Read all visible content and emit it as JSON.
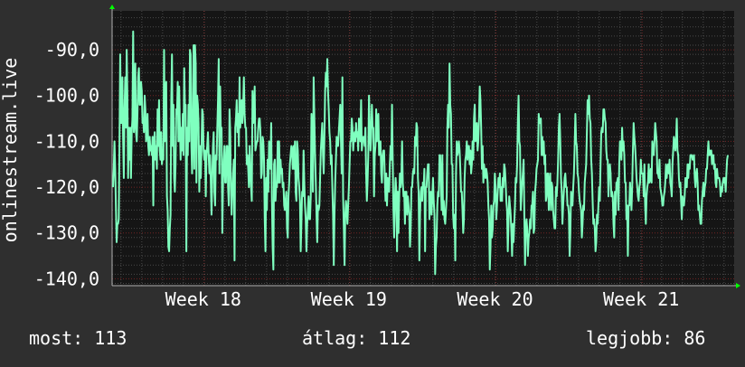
{
  "colors": {
    "background": "#2f2f2f",
    "plot_background": "#151515",
    "grid": "#4a4a4a",
    "grid_minor": "#c03030",
    "series": "#7fffbf",
    "arrow": "#00ff00"
  },
  "chart_data": {
    "type": "line",
    "ylabel": "onlinestream.live",
    "ylim": [
      -141.5,
      -81.5
    ],
    "yticks": [
      -90,
      -100,
      -110,
      -120,
      -130,
      -140
    ],
    "ytick_labels": [
      "-90,0",
      "-100,0",
      "-110,0",
      "-120,0",
      "-130,0",
      "-140,0"
    ],
    "xlim": [
      0,
      1
    ],
    "xticks": [
      0.148,
      0.382,
      0.617,
      0.852
    ],
    "xtick_labels": [
      "Week 18",
      "Week 19",
      "Week 20",
      "Week 21"
    ],
    "grid": true,
    "series": [
      {
        "values": [
          -120,
          -116,
          -110,
          -116,
          -124,
          -132,
          -128,
          -128,
          -127,
          -110,
          -91,
          -106,
          -106,
          -96,
          -109,
          -118,
          -103,
          -96,
          -107,
          -90,
          -100,
          -118,
          -107,
          -114,
          -107,
          -118,
          -108,
          -105,
          -86,
          -108,
          -106,
          -93,
          -108,
          -110,
          -104,
          -96,
          -94,
          -102,
          -102,
          -97,
          -99,
          -106,
          -105,
          -108,
          -100,
          -103,
          -110,
          -108,
          -104,
          -111,
          -113,
          -109,
          -112,
          -111,
          -113,
          -109,
          -124,
          -110,
          -108,
          -114,
          -111,
          -116,
          -103,
          -111,
          -101,
          -112,
          -114,
          -108,
          -115,
          -113,
          -114,
          -90,
          -110,
          -102,
          -97,
          -122,
          -125,
          -133,
          -134,
          -129,
          -126,
          -101,
          -91,
          -111,
          -102,
          -118,
          -121,
          -115,
          -103,
          -104,
          -97,
          -110,
          -98,
          -106,
          -114,
          -107,
          -112,
          -104,
          -113,
          -94,
          -102,
          -102,
          -134,
          -107,
          -113,
          -102,
          -110,
          -90,
          -91,
          -111,
          -117,
          -105,
          -89,
          -116,
          -89,
          -93,
          -119,
          -100,
          -102,
          -106,
          -121,
          -111,
          -118,
          -112,
          -103,
          -104,
          -112,
          -114,
          -112,
          -122,
          -113,
          -111,
          -108,
          -113,
          -117,
          -113,
          -119,
          -126,
          -118,
          -111,
          -108,
          -121,
          -124,
          -113,
          -114,
          -107,
          -101,
          -92,
          -117,
          -98,
          -109,
          -107,
          -130,
          -119,
          -114,
          -111,
          -119,
          -119,
          -111,
          -111,
          -120,
          -124,
          -103,
          -108,
          -120,
          -126,
          -121,
          -117,
          -114,
          -136,
          -107,
          -105,
          -101,
          -108,
          -104,
          -111,
          -96,
          -107,
          -104,
          -101,
          -106,
          -102,
          -96,
          -104,
          -107,
          -107,
          -115,
          -113,
          -116,
          -120,
          -111,
          -116,
          -120,
          -123,
          -99,
          -106,
          -104,
          -98,
          -112,
          -111,
          -110,
          -110,
          -107,
          -105,
          -105,
          -108,
          -118,
          -117,
          -109,
          -110,
          -114,
          -127,
          -134,
          -118,
          -125,
          -114,
          -121,
          -110,
          -112,
          -116,
          -106,
          -123,
          -133,
          -138,
          -115,
          -114,
          -123,
          -119,
          -120,
          -110,
          -119,
          -110,
          -119,
          -114,
          -117,
          -116,
          -120,
          -119,
          -124,
          -125,
          -123,
          -121,
          -129,
          -131,
          -122,
          -119,
          -115,
          -113,
          -111,
          -112,
          -116,
          -111,
          -116,
          -110,
          -121,
          -123,
          -110,
          -112,
          -118,
          -120,
          -123,
          -134,
          -128,
          -121,
          -122,
          -112,
          -119,
          -124,
          -127,
          -134,
          -128,
          -125,
          -122,
          -127,
          -127,
          -122,
          -104,
          -110,
          -121,
          -96,
          -105,
          -113,
          -119,
          -126,
          -132,
          -124,
          -125,
          -124,
          -118,
          -112,
          -109,
          -106,
          -113,
          -117,
          -109,
          -99,
          -95,
          -98,
          -92,
          -99,
          -103,
          -108,
          -110,
          -115,
          -113,
          -120,
          -126,
          -137,
          -126,
          -119,
          -114,
          -109,
          -111,
          -111,
          -108,
          -105,
          -102,
          -110,
          -117,
          -96,
          -122,
          -129,
          -137,
          -126,
          -123,
          -125,
          -128,
          -124,
          -120,
          -115,
          -110,
          -110,
          -105,
          -107,
          -112,
          -109,
          -108,
          -110,
          -106,
          -109,
          -108,
          -112,
          -105,
          -106,
          -110,
          -101,
          -112,
          -110,
          -109,
          -109,
          -111,
          -107,
          -117,
          -123,
          -119,
          -113,
          -100,
          -106,
          -112,
          -109,
          -102,
          -107,
          -107,
          -122,
          -113,
          -111,
          -103,
          -110,
          -105,
          -104,
          -113,
          -111,
          -110,
          -117,
          -119,
          -113,
          -112,
          -112,
          -118,
          -123,
          -117,
          -124,
          -118,
          -119,
          -121,
          -115,
          -111,
          -114,
          -102,
          -114,
          -125,
          -131,
          -123,
          -118,
          -121,
          -134,
          -121,
          -130,
          -122,
          -117,
          -120,
          -118,
          -110,
          -119,
          -122,
          -121,
          -128,
          -121,
          -121,
          -126,
          -122,
          -124,
          -126,
          -133,
          -129,
          -120,
          -120,
          -117,
          -116,
          -117,
          -109,
          -111,
          -106,
          -107,
          -118,
          -121,
          -136,
          -126,
          -121,
          -120,
          -123,
          -119,
          -120,
          -116,
          -134,
          -120,
          -120,
          -117,
          -115,
          -115,
          -127,
          -123,
          -121,
          -126,
          -122,
          -118,
          -123,
          -126,
          -139,
          -133,
          -131,
          -124,
          -121,
          -122,
          -113,
          -113,
          -119,
          -125,
          -113,
          -126,
          -123,
          -127,
          -128,
          -125,
          -122,
          -107,
          -102,
          -107,
          -93,
          -102,
          -104,
          -115,
          -115,
          -126,
          -129,
          -126,
          -136,
          -117,
          -110,
          -113,
          -112,
          -110,
          -112,
          -116,
          -121,
          -121,
          -125,
          -130,
          -127,
          -118,
          -114,
          -113,
          -110,
          -114,
          -111,
          -111,
          -115,
          -112,
          -117,
          -115,
          -110,
          -114,
          -105,
          -102,
          -110,
          -109,
          -106,
          -112,
          -110,
          -105,
          -98,
          -101,
          -107,
          -116,
          -111,
          -119,
          -115,
          -117,
          -118,
          -116,
          -117,
          -119,
          -124,
          -127,
          -138,
          -133,
          -124,
          -131,
          -129,
          -124,
          -123,
          -117,
          -120,
          -127,
          -124,
          -121,
          -118,
          -120,
          -117,
          -123,
          -120,
          -123,
          -118,
          -120,
          -115,
          -116,
          -119,
          -123,
          -125,
          -134,
          -128,
          -122,
          -124,
          -126,
          -130,
          -135,
          -128,
          -132,
          -128,
          -124,
          -118,
          -119,
          -115,
          -106,
          -100,
          -110,
          -111,
          -125,
          -122,
          -119,
          -117,
          -114,
          -126,
          -137,
          -129,
          -127,
          -129,
          -135,
          -131,
          -130,
          -127,
          -129,
          -124,
          -124,
          -121,
          -130,
          -129,
          -121,
          -119,
          -116,
          -115,
          -114,
          -104,
          -106,
          -106,
          -105,
          -113,
          -109,
          -113,
          -110,
          -115,
          -113,
          -123,
          -122,
          -117,
          -117,
          -125,
          -119,
          -117,
          -125,
          -119,
          -120,
          -125,
          -127,
          -129,
          -129,
          -120,
          -122,
          -119,
          -114,
          -107,
          -104,
          -110,
          -118,
          -121,
          -128,
          -124,
          -121,
          -118,
          -117,
          -120,
          -120,
          -124,
          -124,
          -126,
          -135,
          -130,
          -121,
          -124,
          -124,
          -120,
          -117,
          -111,
          -104,
          -110,
          -111,
          -117,
          -118,
          -121,
          -123,
          -124,
          -125,
          -131,
          -128,
          -124,
          -125,
          -119,
          -117,
          -115,
          -108,
          -101,
          -104,
          -100,
          -105,
          -106,
          -114,
          -117,
          -123,
          -128,
          -127,
          -129,
          -134,
          -132,
          -126,
          -128,
          -124,
          -120,
          -123,
          -115,
          -108,
          -107,
          -108,
          -103,
          -103,
          -105,
          -106,
          -112,
          -114,
          -114,
          -122,
          -116,
          -115,
          -117,
          -122,
          -121,
          -122,
          -128,
          -131,
          -121,
          -126,
          -119,
          -119,
          -118,
          -125,
          -115,
          -110,
          -110,
          -114,
          -107,
          -112,
          -110,
          -113,
          -119,
          -119,
          -127,
          -124,
          -135,
          -124,
          -124,
          -119,
          -122,
          -125,
          -120,
          -112,
          -106,
          -109,
          -111,
          -114,
          -118,
          -120,
          -122,
          -123,
          -120,
          -119,
          -114,
          -117,
          -117,
          -117,
          -122,
          -115,
          -124,
          -128,
          -122,
          -120,
          -119,
          -115,
          -119,
          -118,
          -116,
          -119,
          -110,
          -112,
          -113,
          -110,
          -106,
          -108,
          -110,
          -117,
          -117,
          -118,
          -114,
          -120,
          -121,
          -122,
          -124,
          -124,
          -122,
          -121,
          -119,
          -115,
          -118,
          -116,
          -115,
          -117,
          -114,
          -119,
          -120,
          -122,
          -115,
          -112,
          -109,
          -110,
          -112,
          -110,
          -105,
          -112,
          -113,
          -118,
          -120,
          -119,
          -123,
          -127,
          -122,
          -124,
          -124,
          -122,
          -118,
          -120,
          -120,
          -115,
          -118,
          -115,
          -116,
          -113,
          -113,
          -113,
          -114,
          -114,
          -113,
          -118,
          -120,
          -117,
          -116,
          -119,
          -125,
          -124,
          -126,
          -128,
          -128,
          -123,
          -121,
          -119,
          -122,
          -120,
          -119,
          -116,
          -116,
          -113,
          -110,
          -113,
          -113,
          -112,
          -112,
          -115,
          -113,
          -113,
          -116,
          -115,
          -119,
          -120,
          -116,
          -118,
          -118,
          -118,
          -119,
          -122,
          -120,
          -121,
          -119,
          -118,
          -119,
          -118,
          -121,
          -117,
          -114,
          -113
        ],
        "color": "#7fffbf"
      }
    ]
  },
  "stats": {
    "current": "most: 113",
    "average": "átlag: 112",
    "best": "legjobb: 86"
  }
}
